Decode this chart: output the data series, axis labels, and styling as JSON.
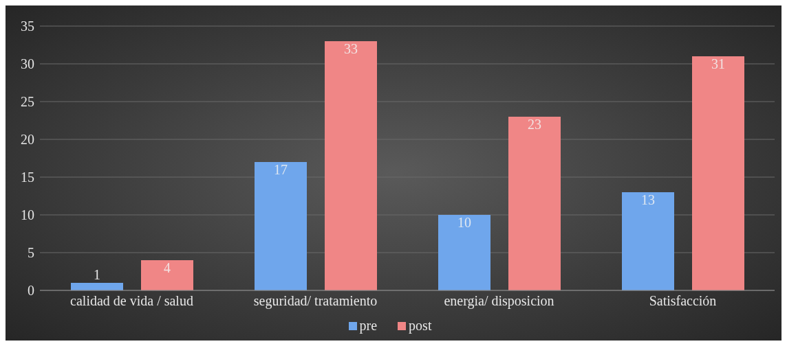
{
  "chart_data": {
    "type": "bar",
    "categories": [
      "calidad de vida / salud",
      "seguridad/ tratamiento",
      "energia/ disposicion",
      "Satisfacción"
    ],
    "series": [
      {
        "name": "pre",
        "color": "#6fa6ec",
        "values": [
          1,
          17,
          10,
          13
        ]
      },
      {
        "name": "post",
        "color": "#f08686",
        "values": [
          4,
          33,
          23,
          31
        ]
      }
    ],
    "ylim": [
      0,
      35
    ],
    "yticks": [
      0,
      5,
      10,
      15,
      20,
      25,
      30,
      35
    ],
    "grid": "y",
    "legend": "bottom",
    "data_labels": true
  }
}
